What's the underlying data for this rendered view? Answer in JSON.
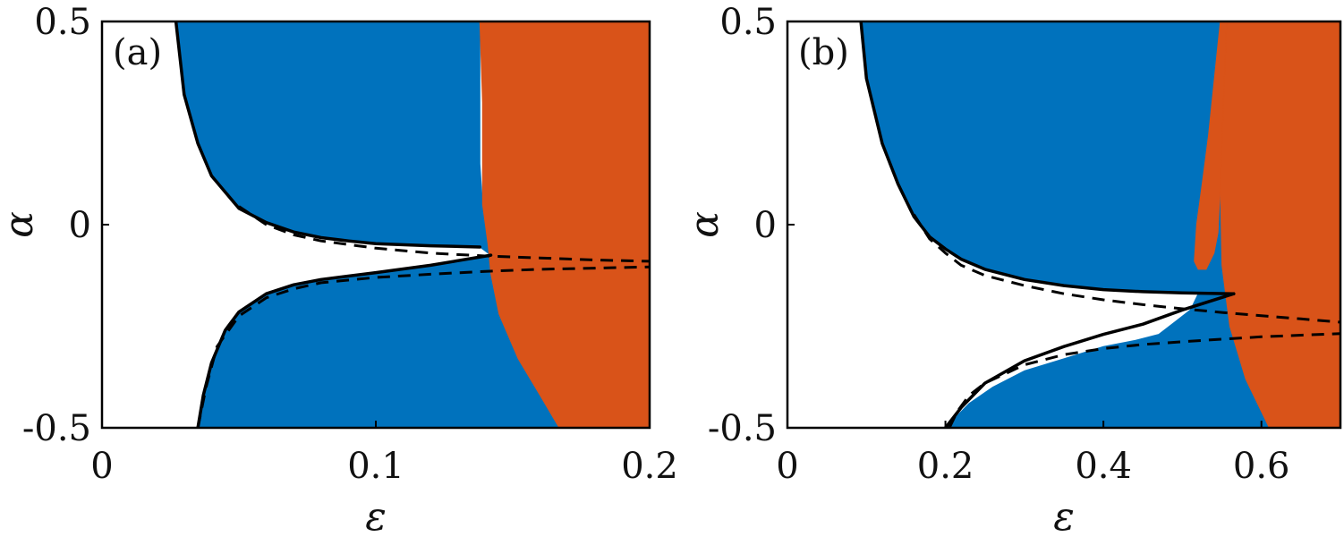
{
  "colors": {
    "blue": "#0072BD",
    "orange": "#D95319",
    "line": "#000000"
  },
  "chart_data": [
    {
      "type": "area",
      "panel_label": "(a)",
      "xlabel": "ε",
      "ylabel": "α",
      "xlim": [
        0,
        0.2
      ],
      "ylim": [
        -0.5,
        0.5
      ],
      "xticks": [
        0,
        0.1,
        0.2
      ],
      "xtick_labels": [
        "0",
        "0.1",
        "0.2"
      ],
      "yticks": [
        -0.5,
        0,
        0.5
      ],
      "ytick_labels": [
        "-0.5",
        "0",
        "0.5"
      ],
      "grid": false,
      "regions": [
        {
          "color": "blue",
          "polygon": [
            [
              0.027,
              0.5
            ],
            [
              0.03,
              0.32
            ],
            [
              0.035,
              0.2
            ],
            [
              0.04,
              0.12
            ],
            [
              0.05,
              0.04
            ],
            [
              0.06,
              0.005
            ],
            [
              0.07,
              -0.018
            ],
            [
              0.08,
              -0.032
            ],
            [
              0.09,
              -0.04
            ],
            [
              0.1,
              -0.047
            ],
            [
              0.12,
              -0.052
            ],
            [
              0.138,
              -0.055
            ],
            [
              0.142,
              -0.075
            ],
            [
              0.12,
              -0.1
            ],
            [
              0.1,
              -0.118
            ],
            [
              0.08,
              -0.135
            ],
            [
              0.07,
              -0.148
            ],
            [
              0.06,
              -0.17
            ],
            [
              0.05,
              -0.215
            ],
            [
              0.045,
              -0.26
            ],
            [
              0.04,
              -0.34
            ],
            [
              0.037,
              -0.42
            ],
            [
              0.035,
              -0.5
            ],
            [
              0.167,
              -0.5
            ],
            [
              0.16,
              -0.42
            ],
            [
              0.152,
              -0.33
            ],
            [
              0.145,
              -0.22
            ],
            [
              0.142,
              -0.12
            ],
            [
              0.141,
              -0.05
            ],
            [
              0.139,
              0.05
            ],
            [
              0.138,
              0.15
            ],
            [
              0.138,
              0.3
            ],
            [
              0.138,
              0.5
            ]
          ]
        },
        {
          "color": "orange",
          "polygon": [
            [
              0.138,
              0.5
            ],
            [
              0.2,
              0.5
            ],
            [
              0.2,
              -0.5
            ],
            [
              0.167,
              -0.5
            ],
            [
              0.16,
              -0.42
            ],
            [
              0.152,
              -0.33
            ],
            [
              0.145,
              -0.22
            ],
            [
              0.142,
              -0.12
            ],
            [
              0.141,
              -0.05
            ],
            [
              0.139,
              0.05
            ],
            [
              0.139,
              0.3
            ],
            [
              0.138,
              0.5
            ]
          ]
        }
      ],
      "series": [
        {
          "style": "solid",
          "points": [
            [
              0.027,
              0.5
            ],
            [
              0.03,
              0.32
            ],
            [
              0.035,
              0.2
            ],
            [
              0.04,
              0.12
            ],
            [
              0.05,
              0.04
            ],
            [
              0.06,
              0.005
            ],
            [
              0.07,
              -0.018
            ],
            [
              0.08,
              -0.032
            ],
            [
              0.09,
              -0.04
            ],
            [
              0.1,
              -0.047
            ],
            [
              0.12,
              -0.052
            ],
            [
              0.138,
              -0.055
            ]
          ]
        },
        {
          "style": "solid",
          "points": [
            [
              0.035,
              -0.5
            ],
            [
              0.037,
              -0.42
            ],
            [
              0.04,
              -0.34
            ],
            [
              0.045,
              -0.26
            ],
            [
              0.05,
              -0.215
            ],
            [
              0.06,
              -0.17
            ],
            [
              0.07,
              -0.148
            ],
            [
              0.08,
              -0.135
            ],
            [
              0.1,
              -0.118
            ],
            [
              0.12,
              -0.1
            ],
            [
              0.142,
              -0.075
            ]
          ]
        },
        {
          "style": "dashed",
          "points": [
            [
              0.05,
              0.045
            ],
            [
              0.06,
              0.0
            ],
            [
              0.07,
              -0.025
            ],
            [
              0.08,
              -0.04
            ],
            [
              0.1,
              -0.058
            ],
            [
              0.12,
              -0.07
            ],
            [
              0.14,
              -0.077
            ],
            [
              0.16,
              -0.082
            ],
            [
              0.18,
              -0.087
            ],
            [
              0.2,
              -0.09
            ]
          ]
        },
        {
          "style": "dashed",
          "points": [
            [
              0.035,
              -0.5
            ],
            [
              0.038,
              -0.4
            ],
            [
              0.042,
              -0.3
            ],
            [
              0.05,
              -0.225
            ],
            [
              0.06,
              -0.18
            ],
            [
              0.07,
              -0.158
            ],
            [
              0.08,
              -0.143
            ],
            [
              0.1,
              -0.13
            ],
            [
              0.12,
              -0.122
            ],
            [
              0.14,
              -0.115
            ],
            [
              0.16,
              -0.11
            ],
            [
              0.18,
              -0.107
            ],
            [
              0.2,
              -0.104
            ]
          ]
        }
      ]
    },
    {
      "type": "area",
      "panel_label": "(b)",
      "xlabel": "ε",
      "ylabel": "α",
      "xlim": [
        0,
        0.7
      ],
      "ylim": [
        -0.5,
        0.5
      ],
      "xticks": [
        0,
        0.2,
        0.4,
        0.6
      ],
      "xtick_labels": [
        "0",
        "0.2",
        "0.4",
        "0.6"
      ],
      "yticks": [
        -0.5,
        0,
        0.5
      ],
      "ytick_labels": [
        "-0.5",
        "0",
        "0.5"
      ],
      "grid": false,
      "regions": [
        {
          "color": "blue",
          "polygon": [
            [
              0.093,
              0.5
            ],
            [
              0.1,
              0.36
            ],
            [
              0.12,
              0.2
            ],
            [
              0.14,
              0.1
            ],
            [
              0.16,
              0.02
            ],
            [
              0.18,
              -0.03
            ],
            [
              0.2,
              -0.06
            ],
            [
              0.22,
              -0.085
            ],
            [
              0.25,
              -0.11
            ],
            [
              0.3,
              -0.135
            ],
            [
              0.35,
              -0.15
            ],
            [
              0.4,
              -0.16
            ],
            [
              0.45,
              -0.165
            ],
            [
              0.5,
              -0.168
            ],
            [
              0.52,
              -0.17
            ],
            [
              0.51,
              -0.21
            ],
            [
              0.49,
              -0.24
            ],
            [
              0.47,
              -0.27
            ],
            [
              0.44,
              -0.285
            ],
            [
              0.4,
              -0.3
            ],
            [
              0.35,
              -0.33
            ],
            [
              0.3,
              -0.36
            ],
            [
              0.26,
              -0.4
            ],
            [
              0.23,
              -0.44
            ],
            [
              0.21,
              -0.48
            ],
            [
              0.2,
              -0.5
            ],
            [
              0.61,
              -0.5
            ],
            [
              0.58,
              -0.38
            ],
            [
              0.56,
              -0.25
            ],
            [
              0.55,
              -0.1
            ],
            [
              0.548,
              0.1
            ],
            [
              0.55,
              0.3
            ],
            [
              0.555,
              0.5
            ]
          ]
        },
        {
          "color": "orange",
          "polygon": [
            [
              0.555,
              0.5
            ],
            [
              0.7,
              0.5
            ],
            [
              0.7,
              -0.5
            ],
            [
              0.61,
              -0.5
            ],
            [
              0.58,
              -0.38
            ],
            [
              0.56,
              -0.25
            ],
            [
              0.55,
              -0.1
            ],
            [
              0.548,
              0.1
            ],
            [
              0.55,
              0.3
            ],
            [
              0.555,
              0.5
            ]
          ]
        },
        {
          "color": "orange",
          "polygon": [
            [
              0.515,
              -0.09
            ],
            [
              0.518,
              0.0
            ],
            [
              0.525,
              0.1
            ],
            [
              0.533,
              0.22
            ],
            [
              0.54,
              0.35
            ],
            [
              0.548,
              0.5
            ],
            [
              0.556,
              0.5
            ],
            [
              0.552,
              0.3
            ],
            [
              0.548,
              0.1
            ],
            [
              0.545,
              -0.02
            ],
            [
              0.54,
              -0.07
            ],
            [
              0.53,
              -0.11
            ],
            [
              0.52,
              -0.11
            ]
          ]
        }
      ],
      "series": [
        {
          "style": "solid",
          "points": [
            [
              0.093,
              0.5
            ],
            [
              0.1,
              0.36
            ],
            [
              0.12,
              0.2
            ],
            [
              0.14,
              0.1
            ],
            [
              0.16,
              0.02
            ],
            [
              0.18,
              -0.03
            ],
            [
              0.2,
              -0.06
            ],
            [
              0.22,
              -0.085
            ],
            [
              0.25,
              -0.11
            ],
            [
              0.3,
              -0.135
            ],
            [
              0.35,
              -0.15
            ],
            [
              0.4,
              -0.16
            ],
            [
              0.45,
              -0.165
            ],
            [
              0.5,
              -0.168
            ],
            [
              0.565,
              -0.17
            ]
          ]
        },
        {
          "style": "solid",
          "points": [
            [
              0.2,
              -0.5
            ],
            [
              0.22,
              -0.45
            ],
            [
              0.25,
              -0.39
            ],
            [
              0.3,
              -0.335
            ],
            [
              0.35,
              -0.3
            ],
            [
              0.4,
              -0.27
            ],
            [
              0.45,
              -0.245
            ],
            [
              0.5,
              -0.21
            ],
            [
              0.565,
              -0.17
            ]
          ]
        },
        {
          "style": "dashed",
          "points": [
            [
              0.16,
              0.025
            ],
            [
              0.18,
              -0.035
            ],
            [
              0.2,
              -0.07
            ],
            [
              0.22,
              -0.1
            ],
            [
              0.25,
              -0.125
            ],
            [
              0.3,
              -0.15
            ],
            [
              0.35,
              -0.17
            ],
            [
              0.4,
              -0.185
            ],
            [
              0.45,
              -0.197
            ],
            [
              0.5,
              -0.207
            ],
            [
              0.55,
              -0.216
            ],
            [
              0.6,
              -0.224
            ],
            [
              0.65,
              -0.232
            ],
            [
              0.7,
              -0.24
            ]
          ]
        },
        {
          "style": "dashed",
          "points": [
            [
              0.205,
              -0.5
            ],
            [
              0.215,
              -0.46
            ],
            [
              0.23,
              -0.42
            ],
            [
              0.25,
              -0.39
            ],
            [
              0.3,
              -0.345
            ],
            [
              0.35,
              -0.32
            ],
            [
              0.4,
              -0.305
            ],
            [
              0.45,
              -0.295
            ],
            [
              0.5,
              -0.288
            ],
            [
              0.55,
              -0.282
            ],
            [
              0.6,
              -0.276
            ],
            [
              0.65,
              -0.272
            ],
            [
              0.7,
              -0.268
            ]
          ]
        }
      ]
    }
  ]
}
